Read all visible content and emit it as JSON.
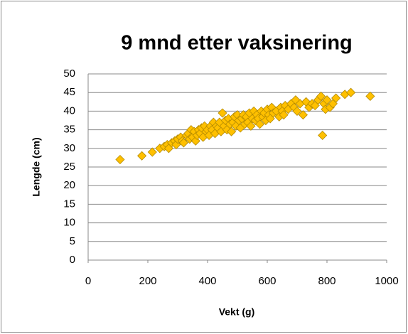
{
  "chart_data": {
    "type": "scatter",
    "title": "9 mnd etter vaksinering",
    "x_label": "Vekt (g)",
    "y_label": "Lengde (cm)",
    "xlim": [
      0,
      1000
    ],
    "xticks": [
      0,
      200,
      400,
      600,
      800,
      1000
    ],
    "ylim": [
      0,
      50
    ],
    "yticks": [
      0,
      5,
      10,
      15,
      20,
      25,
      30,
      35,
      40,
      45,
      50
    ],
    "grid": true,
    "series": [
      {
        "color": "#ffc000",
        "x": [
          107,
          180,
          215,
          240,
          255,
          265,
          270,
          280,
          290,
          295,
          300,
          310,
          315,
          320,
          330,
          335,
          340,
          345,
          350,
          355,
          360,
          365,
          370,
          375,
          380,
          385,
          390,
          395,
          400,
          405,
          410,
          415,
          420,
          425,
          430,
          435,
          440,
          445,
          450,
          455,
          460,
          465,
          470,
          475,
          480,
          485,
          490,
          495,
          500,
          505,
          510,
          515,
          520,
          525,
          530,
          535,
          540,
          545,
          550,
          555,
          560,
          565,
          570,
          575,
          580,
          585,
          590,
          595,
          600,
          605,
          610,
          615,
          620,
          630,
          640,
          645,
          650,
          655,
          660,
          670,
          680,
          690,
          695,
          700,
          710,
          720,
          730,
          740,
          750,
          760,
          770,
          780,
          785,
          790,
          795,
          800,
          810,
          820,
          830,
          860,
          880,
          945
        ],
        "values": [
          27,
          28,
          29,
          30,
          30.5,
          31,
          30,
          31.5,
          32,
          31,
          32.5,
          33,
          32,
          31.5,
          33.5,
          34,
          32.5,
          35,
          33,
          34.5,
          32,
          33.5,
          35,
          34,
          35.5,
          33,
          36,
          34.5,
          35,
          33.5,
          36,
          35,
          37,
          34,
          36,
          35.5,
          37,
          34.5,
          39.5,
          36,
          37.5,
          35,
          38,
          36.5,
          34.5,
          37,
          38.5,
          36,
          39,
          37.5,
          35.5,
          38,
          39,
          36.5,
          38.5,
          37,
          39.5,
          36,
          38,
          40,
          37.5,
          39,
          38,
          36.5,
          40,
          38.5,
          39.5,
          37.5,
          40.5,
          39,
          38,
          41,
          39.5,
          40,
          38.5,
          41,
          40,
          39,
          41.5,
          40.5,
          42,
          41,
          43,
          40,
          42,
          39,
          42.5,
          41,
          42,
          41.5,
          43,
          44,
          33.5,
          42,
          40.5,
          43,
          41,
          42,
          43.5,
          44.5,
          45,
          44
        ]
      }
    ]
  }
}
